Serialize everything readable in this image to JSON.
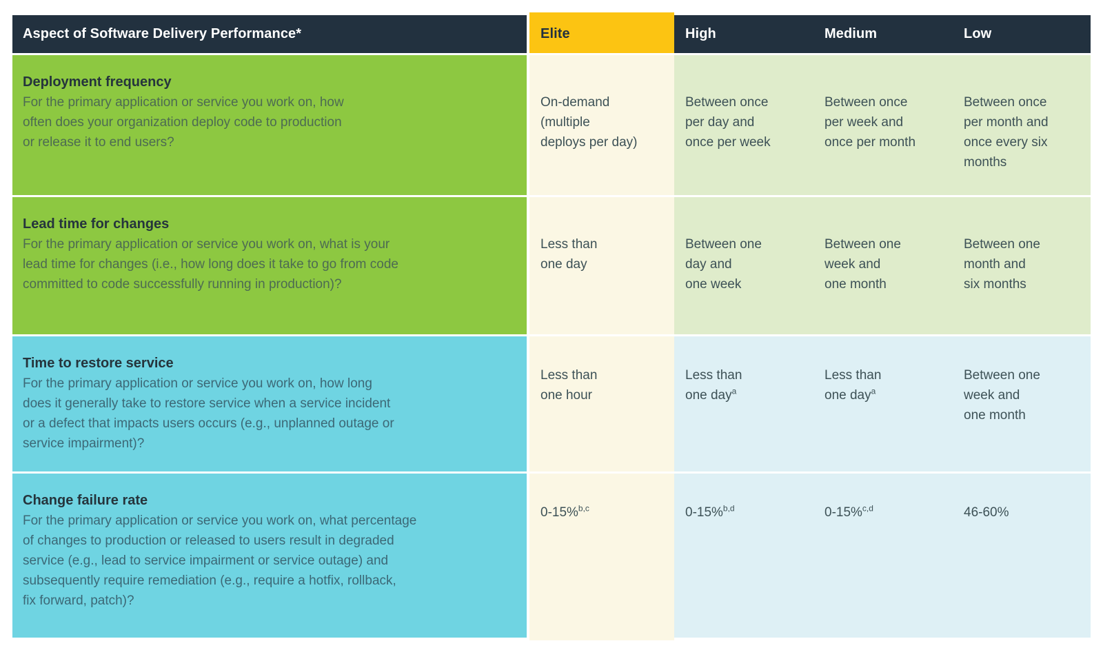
{
  "chart_data": {
    "type": "table",
    "title": "Aspect of Software Delivery Performance*",
    "columns": [
      "Aspect of Software Delivery Performance*",
      "Elite",
      "High",
      "Medium",
      "Low"
    ],
    "rows": [
      [
        "Deployment frequency",
        "On-demand (multiple deploys per day)",
        "Between once per day and once per week",
        "Between once per week and once per month",
        "Between once per month and once every six months"
      ],
      [
        "Lead time for changes",
        "Less than one day",
        "Between one day and one week",
        "Between one week and one month",
        "Between one month and six months"
      ],
      [
        "Time to restore service",
        "Less than one hour",
        "Less than one day (a)",
        "Less than one day (a)",
        "Between one week and one month"
      ],
      [
        "Change failure rate",
        "0-15% (b,c)",
        "0-15% (b,d)",
        "0-15% (c,d)",
        "46-60%"
      ]
    ],
    "footnote_markers": [
      "a",
      "b,c",
      "b,d",
      "c,d"
    ]
  },
  "table": {
    "header": {
      "aspect_label": "Aspect of Software Delivery Performance*",
      "levels": [
        "Elite",
        "High",
        "Medium",
        "Low"
      ]
    },
    "rows": [
      {
        "metric": "Deployment frequency",
        "question": "For the primary application or service you work on, how\noften does your organization deploy code to production\nor release it to end users?",
        "theme": "green",
        "cells": [
          {
            "level": "Elite",
            "text": "On-demand\n(multiple\ndeploys per day)"
          },
          {
            "level": "High",
            "text": "Between once\nper day and\nonce per week"
          },
          {
            "level": "Medium",
            "text": "Between once\nper week and\nonce per month"
          },
          {
            "level": "Low",
            "text": "Between once\nper month and\nonce every six\nmonths"
          }
        ]
      },
      {
        "metric": "Lead time for changes",
        "question": "For the primary application or service you work on, what is your\nlead time for changes (i.e., how long does it take to go from code\ncommitted to code successfully running in production)?",
        "theme": "green",
        "cells": [
          {
            "level": "Elite",
            "text": "Less than\none day"
          },
          {
            "level": "High",
            "text": "Between one\nday and\none week"
          },
          {
            "level": "Medium",
            "text": "Between one\nweek and\none month"
          },
          {
            "level": "Low",
            "text": "Between one\nmonth and\nsix months"
          }
        ]
      },
      {
        "metric": "Time to restore service",
        "question": "For the primary application or service you work on, how long\ndoes it generally take to restore service when a service incident\nor a defect that impacts users occurs (e.g., unplanned outage or\nservice impairment)?",
        "theme": "cyan",
        "cells": [
          {
            "level": "Elite",
            "text": "Less than\none hour"
          },
          {
            "level": "High",
            "text": "Less than\none day",
            "sup": "a"
          },
          {
            "level": "Medium",
            "text": "Less than\none day",
            "sup": "a"
          },
          {
            "level": "Low",
            "text": "Between one\nweek and\none month"
          }
        ]
      },
      {
        "metric": "Change failure rate",
        "question": "For the primary application or service you work on, what percentage\nof changes to production or released to users result in degraded\nservice (e.g., lead to service impairment or service outage) and\nsubsequently require remediation (e.g., require a hotfix, rollback,\nfix forward, patch)?",
        "theme": "cyan",
        "cells": [
          {
            "level": "Elite",
            "text": "0-15%",
            "sup": "b,c"
          },
          {
            "level": "High",
            "text": "0-15%",
            "sup": "b,d"
          },
          {
            "level": "Medium",
            "text": "0-15%",
            "sup": "c,d"
          },
          {
            "level": "Low",
            "text": "46-60%"
          }
        ]
      }
    ],
    "colors": {
      "header_navy": "#22313f",
      "elite_yellow": "#fcc412",
      "question_green": "#8dc841",
      "question_cyan": "#6fd4e2",
      "elite_cream": "#fbf7e4",
      "value_light_green": "#dfeccb",
      "value_light_blue": "#def0f5",
      "header_text": "#ffffff",
      "metric_title_text": "#25343c",
      "value_text": "#3d5156"
    }
  }
}
